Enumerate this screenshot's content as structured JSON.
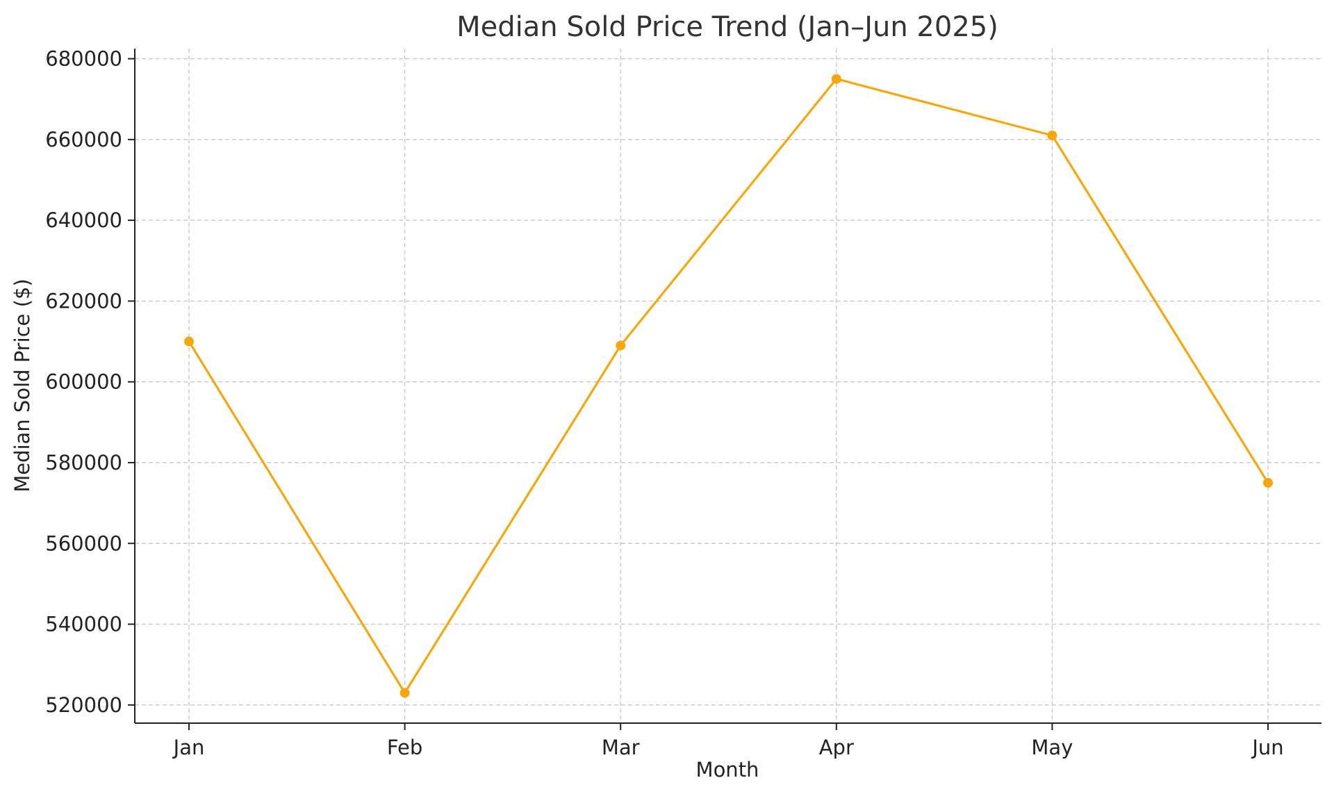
{
  "chart_data": {
    "type": "line",
    "title": "Median Sold Price Trend (Jan–Jun 2025)",
    "xlabel": "Month",
    "ylabel": "Median Sold Price ($)",
    "categories": [
      "Jan",
      "Feb",
      "Mar",
      "Apr",
      "May",
      "Jun"
    ],
    "series": [
      {
        "values": [
          610000,
          523000,
          609000,
          675000,
          661000,
          575000
        ],
        "color": "#F5A70C"
      }
    ],
    "ylim": [
      515500,
      682500
    ],
    "yticks": [
      520000,
      540000,
      560000,
      580000,
      600000,
      620000,
      640000,
      660000,
      680000
    ],
    "grid": true,
    "marker": "circle",
    "legend": "none"
  }
}
